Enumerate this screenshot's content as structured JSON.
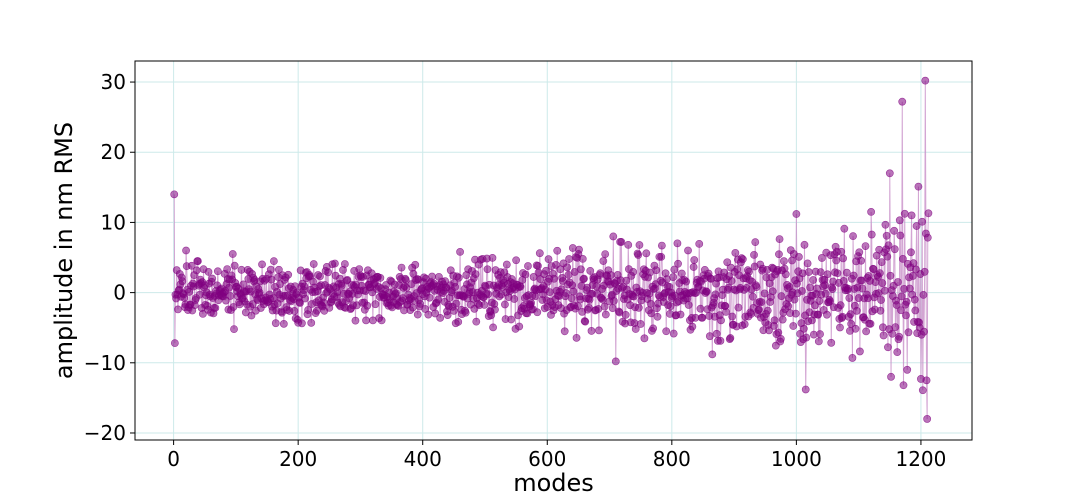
{
  "chart_data": {
    "type": "scatter",
    "title": "",
    "xlabel": "modes",
    "ylabel": "amplitude in nm RMS",
    "xlim": [
      -62,
      1282
    ],
    "ylim": [
      -21,
      33
    ],
    "xticks": [
      0,
      200,
      400,
      600,
      800,
      1000,
      1200
    ],
    "yticks": [
      -20,
      -10,
      0,
      10,
      20,
      30
    ],
    "xtick_labels": [
      "0",
      "200",
      "400",
      "600",
      "800",
      "1000",
      "1200"
    ],
    "ytick_labels": [
      "−20",
      "−10",
      "0",
      "10",
      "20",
      "30"
    ],
    "grid": true,
    "legend": "none",
    "n_points": 1212,
    "marker_color": "#800080",
    "stem_color": "#c88fc8",
    "grid_color": "#cdeaea",
    "noise_envelope": {
      "x": [
        0,
        100,
        200,
        300,
        400,
        500,
        600,
        700,
        800,
        900,
        1000,
        1100,
        1212
      ],
      "std": [
        2.0,
        2.1,
        2.0,
        1.8,
        1.8,
        2.2,
        2.6,
        3.3,
        3.2,
        3.1,
        3.6,
        4.3,
        6.5
      ]
    },
    "highlighted_points": [
      {
        "x": 1,
        "y": 14.0
      },
      {
        "x": 2,
        "y": -7.2
      },
      {
        "x": 5,
        "y": 3.2
      },
      {
        "x": 20,
        "y": 6.0
      },
      {
        "x": 95,
        "y": 5.5
      },
      {
        "x": 97,
        "y": -5.2
      },
      {
        "x": 460,
        "y": 5.8
      },
      {
        "x": 706,
        "y": 8.0
      },
      {
        "x": 710,
        "y": -9.8
      },
      {
        "x": 730,
        "y": 6.8
      },
      {
        "x": 784,
        "y": 6.7
      },
      {
        "x": 865,
        "y": -8.8
      },
      {
        "x": 1000,
        "y": 11.2
      },
      {
        "x": 1015,
        "y": -13.8
      },
      {
        "x": 1120,
        "y": 11.5
      },
      {
        "x": 1150,
        "y": 17.0
      },
      {
        "x": 1152,
        "y": -12.0
      },
      {
        "x": 1170,
        "y": 27.2
      },
      {
        "x": 1172,
        "y": -13.2
      },
      {
        "x": 1178,
        "y": -11.0
      },
      {
        "x": 1185,
        "y": 11.0
      },
      {
        "x": 1196,
        "y": 15.1
      },
      {
        "x": 1200,
        "y": -12.3
      },
      {
        "x": 1207,
        "y": 30.2
      },
      {
        "x": 1209,
        "y": -12.5
      },
      {
        "x": 1210,
        "y": -18.0
      },
      {
        "x": 1213,
        "y": 11.3
      }
    ]
  }
}
